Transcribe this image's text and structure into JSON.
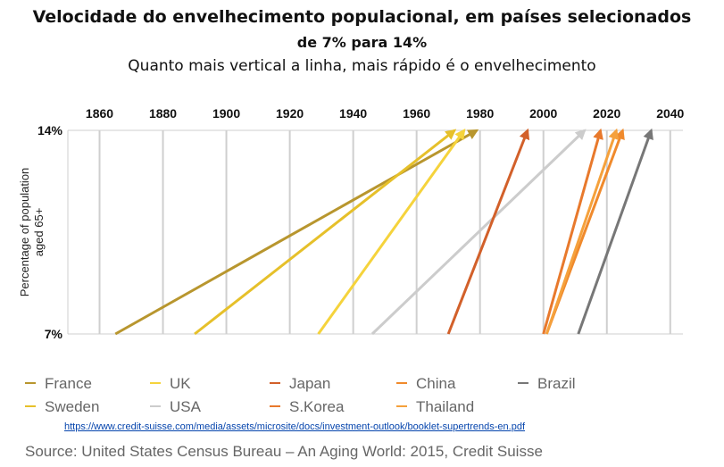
{
  "title": "Velocidade do envelhecimento populacional, em países selecionados",
  "subtitle": "de 7% para 14%",
  "note": "Quanto mais vertical a linha, mais rápido é o envelhecimento",
  "link": "https://www.credit-suisse.com/media/assets/microsite/docs/investment-outlook/booklet-supertrends-en.pdf",
  "source": "Source: United States Census Bureau – An Aging World: 2015, Credit Suisse",
  "chart_data": {
    "type": "line",
    "ylabel_lines": [
      "Percentage of population",
      "aged 65+"
    ],
    "x_ticks": [
      1860,
      1880,
      1900,
      1920,
      1940,
      1960,
      1980,
      2000,
      2020,
      2040
    ],
    "x_tick_labels": [
      "1860",
      "1880",
      "1900",
      "1920",
      "1940",
      "1960",
      "1980",
      "2000",
      "2020",
      "2040"
    ],
    "xlim": [
      1850,
      2044
    ],
    "y_ticks": [
      7,
      14
    ],
    "y_tick_labels": [
      "7%",
      "14%"
    ],
    "ylim": [
      7,
      14
    ],
    "grid": true,
    "legend_position": "bottom",
    "series": [
      {
        "name": "France",
        "color": "#b8962e",
        "x": [
          1865,
          1979
        ]
      },
      {
        "name": "Sweden",
        "color": "#e6c02a",
        "x": [
          1890,
          1972
        ]
      },
      {
        "name": "UK",
        "color": "#f5d33c",
        "x": [
          1929,
          1975
        ]
      },
      {
        "name": "USA",
        "color": "#cccccc",
        "x": [
          1946,
          2013
        ]
      },
      {
        "name": "Japan",
        "color": "#d2602a",
        "x": [
          1970,
          1995
        ]
      },
      {
        "name": "S.Korea",
        "color": "#e8792c",
        "x": [
          2000,
          2018
        ]
      },
      {
        "name": "China",
        "color": "#f08a2c",
        "x": [
          2001,
          2025
        ]
      },
      {
        "name": "Thailand",
        "color": "#f5a13c",
        "x": [
          2001,
          2023
        ]
      },
      {
        "name": "Brazil",
        "color": "#777777",
        "x": [
          2011,
          2034
        ]
      }
    ]
  },
  "legend": [
    {
      "label": "France",
      "color": "#b8962e"
    },
    {
      "label": "UK",
      "color": "#f5d33c"
    },
    {
      "label": "Japan",
      "color": "#d2602a"
    },
    {
      "label": "China",
      "color": "#f08a2c"
    },
    {
      "label": "Brazil",
      "color": "#777777"
    },
    {
      "label": "Sweden",
      "color": "#e6c02a"
    },
    {
      "label": "USA",
      "color": "#cccccc"
    },
    {
      "label": "S.Korea",
      "color": "#e8792c"
    },
    {
      "label": "Thailand",
      "color": "#f5a13c"
    }
  ]
}
